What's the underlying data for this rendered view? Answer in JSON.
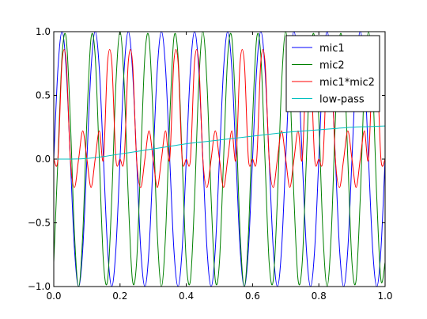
{
  "chart_data": {
    "type": "line",
    "title": "",
    "xlabel": "",
    "ylabel": "",
    "xlim": [
      0.0,
      1.0
    ],
    "ylim": [
      -1.0,
      1.0
    ],
    "x_ticks": [
      0.0,
      0.2,
      0.4,
      0.6,
      0.8,
      1.0
    ],
    "x_tick_labels": [
      "0.0",
      "0.2",
      "0.4",
      "0.6",
      "0.8",
      "1.0"
    ],
    "y_ticks": [
      -1.0,
      -0.5,
      0.0,
      0.5,
      1.0
    ],
    "y_tick_labels": [
      "−1.0",
      "−0.5",
      "0.0",
      "0.5",
      "1.0"
    ],
    "grid": false,
    "legend_position": "top-right",
    "series": [
      {
        "name": "mic1",
        "color": "#0000ff",
        "x": [
          0.0,
          0.0125,
          0.025,
          0.0375,
          0.05,
          0.0625,
          0.075,
          0.0875,
          0.1,
          0.1125,
          0.125,
          0.1375,
          0.15,
          0.1625,
          0.175,
          0.1875,
          0.2,
          0.2125,
          0.225,
          0.2375,
          0.25,
          0.2625,
          0.275,
          0.2875,
          0.3,
          0.3125,
          0.325,
          0.3375,
          0.35,
          0.3625,
          0.375,
          0.3875,
          0.4,
          0.4125,
          0.425,
          0.4375,
          0.45,
          0.4625,
          0.475,
          0.4875,
          0.5,
          0.5125,
          0.525,
          0.5375,
          0.55,
          0.5625,
          0.575,
          0.5875,
          0.6,
          0.6125,
          0.625,
          0.6375,
          0.65,
          0.6625,
          0.675,
          0.6875,
          0.7,
          0.7125,
          0.725,
          0.7375,
          0.75,
          0.7625,
          0.775,
          0.7875,
          0.8,
          0.8125,
          0.825,
          0.8375,
          0.85,
          0.8625,
          0.875,
          0.8875,
          0.9,
          0.9125,
          0.925,
          0.9375,
          0.95,
          0.9625,
          0.975,
          0.9875,
          1.0
        ],
        "y": [
          0.0,
          0.707,
          1.0,
          0.707,
          0.0,
          -0.707,
          -1.0,
          -0.707,
          0.0,
          0.707,
          1.0,
          0.707,
          0.0,
          -0.707,
          -1.0,
          -0.707,
          0.0,
          0.707,
          1.0,
          0.707,
          0.0,
          -0.707,
          -1.0,
          -0.707,
          0.0,
          0.707,
          1.0,
          0.707,
          0.0,
          -0.707,
          -1.0,
          -0.707,
          0.0,
          0.707,
          1.0,
          0.707,
          0.0,
          -0.707,
          -1.0,
          -0.707,
          0.0,
          0.707,
          1.0,
          0.707,
          0.0,
          -0.707,
          -1.0,
          -0.707,
          0.0,
          0.707,
          1.0,
          0.707,
          0.0,
          -0.707,
          -1.0,
          -0.707,
          0.0,
          0.707,
          1.0,
          0.707,
          0.0,
          -0.707,
          -1.0,
          -0.707,
          0.0,
          0.707,
          1.0,
          0.707,
          0.0,
          -0.707,
          -1.0,
          -0.707,
          0.0,
          0.707,
          1.0,
          0.707,
          0.0,
          -0.707,
          -1.0,
          -0.707,
          0.0
        ]
      },
      {
        "name": "mic2",
        "color": "#008000",
        "x": [
          0.0,
          0.0125,
          0.025,
          0.0375,
          0.05,
          0.0625,
          0.075,
          0.0875,
          0.1,
          0.1125,
          0.125,
          0.1375,
          0.15,
          0.1625,
          0.175,
          0.1875,
          0.2,
          0.2125,
          0.225,
          0.2375,
          0.25,
          0.2625,
          0.275,
          0.2875,
          0.3,
          0.3125,
          0.325,
          0.3375,
          0.35,
          0.3625,
          0.375,
          0.3875,
          0.4,
          0.4125,
          0.425,
          0.4375,
          0.45,
          0.4625,
          0.475,
          0.4875,
          0.5,
          0.5125,
          0.525,
          0.5375,
          0.55,
          0.5625,
          0.575,
          0.5875,
          0.6,
          0.6125,
          0.625,
          0.6375,
          0.65,
          0.6625,
          0.675,
          0.6875,
          0.7,
          0.7125,
          0.725,
          0.7375,
          0.75,
          0.7625,
          0.775,
          0.7875,
          0.8,
          0.8125,
          0.825,
          0.8375,
          0.85,
          0.8625,
          0.875,
          0.8875,
          0.9,
          0.9125,
          0.925,
          0.9375,
          0.95,
          0.9625,
          0.975,
          0.9875,
          1.0
        ],
        "y": [
          -0.809,
          0.0,
          0.809,
          0.951,
          0.309,
          -0.588,
          -1.0,
          -0.588,
          0.309,
          0.951,
          0.809,
          0.0,
          -0.809,
          -0.951,
          -0.309,
          0.588,
          1.0,
          0.588,
          -0.309,
          -0.951,
          -0.809,
          0.0,
          0.809,
          0.951,
          0.309,
          -0.588,
          -1.0,
          -0.588,
          0.309,
          0.951,
          0.809,
          0.0,
          -0.809,
          -0.951,
          -0.309,
          0.588,
          1.0,
          0.588,
          -0.309,
          -0.951,
          -0.809,
          0.0,
          0.809,
          0.951,
          0.309,
          -0.588,
          -1.0,
          -0.588,
          0.309,
          0.951,
          0.809,
          0.0,
          -0.809,
          -0.951,
          -0.309,
          0.588,
          1.0,
          0.588,
          -0.309,
          -0.951,
          -0.809,
          0.0,
          0.809,
          0.951,
          0.309,
          -0.588,
          -1.0,
          -0.588,
          0.309,
          0.951,
          0.809,
          0.0,
          -0.809,
          -0.951,
          -0.309,
          0.588,
          1.0,
          0.588,
          -0.309,
          -0.951,
          -0.809
        ]
      },
      {
        "name": "mic1*mic2",
        "color": "#ff0000",
        "x": [
          0.0,
          0.0125,
          0.025,
          0.0375,
          0.05,
          0.0625,
          0.075,
          0.0875,
          0.1,
          0.1125,
          0.125,
          0.1375,
          0.15,
          0.1625,
          0.175,
          0.1875,
          0.2,
          0.2125,
          0.225,
          0.2375,
          0.25,
          0.2625,
          0.275,
          0.2875,
          0.3,
          0.3125,
          0.325,
          0.3375,
          0.35,
          0.3625,
          0.375,
          0.3875,
          0.4,
          0.4125,
          0.425,
          0.4375,
          0.45,
          0.4625,
          0.475,
          0.4875,
          0.5,
          0.5125,
          0.525,
          0.5375,
          0.55,
          0.5625,
          0.575,
          0.5875,
          0.6,
          0.6125,
          0.625,
          0.6375,
          0.65,
          0.6625,
          0.675,
          0.6875,
          0.7,
          0.7125,
          0.725,
          0.7375,
          0.75,
          0.7625,
          0.775,
          0.7875,
          0.8,
          0.8125,
          0.825,
          0.8375,
          0.85,
          0.8625,
          0.875,
          0.8875,
          0.9,
          0.9125,
          0.925,
          0.9375,
          0.95,
          0.9625,
          0.975,
          0.9875,
          1.0
        ],
        "y": [
          0.0,
          0.0,
          0.765,
          0.765,
          0.0,
          -0.222,
          0.0,
          0.222,
          0.0,
          -0.222,
          0.0,
          0.222,
          0.0,
          0.765,
          0.765,
          0.0,
          0.0,
          0.0,
          0.765,
          0.765,
          0.0,
          -0.222,
          0.0,
          0.222,
          0.0,
          -0.222,
          0.0,
          0.222,
          0.0,
          0.765,
          0.765,
          0.0,
          0.0,
          0.0,
          0.765,
          0.765,
          0.0,
          -0.222,
          0.0,
          0.222,
          0.0,
          -0.222,
          0.0,
          0.222,
          0.0,
          0.765,
          0.765,
          0.0,
          0.0,
          0.0,
          0.765,
          0.765,
          0.0,
          -0.222,
          0.0,
          0.222,
          0.0,
          -0.222,
          0.0,
          0.222,
          0.0,
          0.765,
          0.765,
          0.0,
          0.0,
          0.0,
          0.765,
          0.765,
          0.0,
          -0.222,
          0.0,
          0.222,
          0.0,
          -0.222,
          0.0,
          0.222,
          0.0,
          0.765,
          0.765,
          0.0,
          0.0
        ]
      },
      {
        "name": "low-pass",
        "color": "#00bfbf",
        "x": [
          0.0,
          0.05,
          0.1,
          0.15,
          0.2,
          0.25,
          0.3,
          0.35,
          0.4,
          0.45,
          0.5,
          0.55,
          0.6,
          0.65,
          0.7,
          0.75,
          0.8,
          0.85,
          0.9,
          0.95,
          1.0
        ],
        "y": [
          0.0,
          0.0,
          0.005,
          0.02,
          0.04,
          0.06,
          0.08,
          0.1,
          0.12,
          0.135,
          0.15,
          0.165,
          0.18,
          0.195,
          0.21,
          0.22,
          0.23,
          0.24,
          0.25,
          0.255,
          0.26
        ]
      }
    ]
  }
}
